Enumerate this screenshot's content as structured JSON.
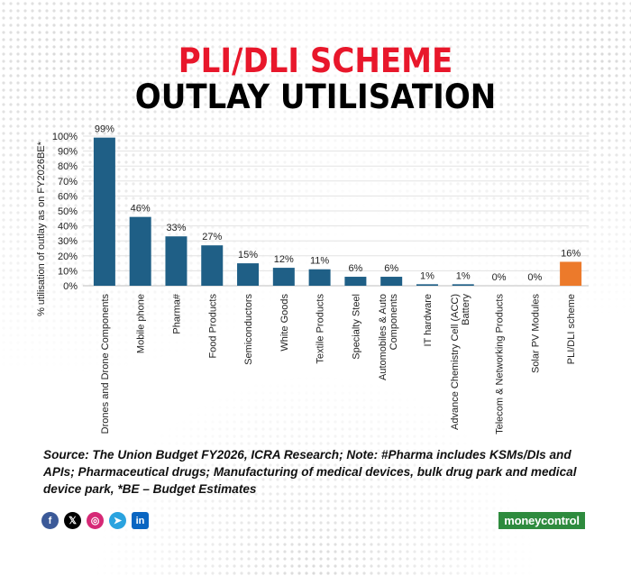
{
  "title": {
    "line1": "PLI/DLI SCHEME",
    "line2": "OUTLAY UTILISATION"
  },
  "chart_data": {
    "type": "bar",
    "ylabel": "% utilisation of outlay as on FY2026BE*",
    "xlabel": "",
    "ylim": [
      0,
      100
    ],
    "yticks": [
      "0%",
      "10%",
      "20%",
      "30%",
      "40%",
      "50%",
      "60%",
      "70%",
      "80%",
      "90%",
      "100%"
    ],
    "grid": true,
    "categories": [
      "Drones and Drone Components",
      "Mobile phone",
      "Pharma#",
      "Food Products",
      "Semiconductors",
      "White Goods",
      "Textile Products",
      "Specialty Steel",
      "Automobiles & Auto Components",
      "IT hardware",
      "Advance Chemistry Cell (ACC) Battery",
      "Telecom & Networking Products",
      "Solar PV Modules",
      "PLI/DLI scheme"
    ],
    "category_lines": [
      [
        "Drones and Drone Components"
      ],
      [
        "Mobile phone"
      ],
      [
        "Pharma#"
      ],
      [
        "Food Products"
      ],
      [
        "Semiconductors"
      ],
      [
        "White Goods"
      ],
      [
        "Textile Products"
      ],
      [
        "Specialty Steel"
      ],
      [
        "Automobiles & Auto",
        "Components"
      ],
      [
        "IT hardware"
      ],
      [
        "Advance Chemistry Cell (ACC)",
        "Battery"
      ],
      [
        "Telecom & Networking Products"
      ],
      [
        "Solar PV Modules"
      ],
      [
        "PLI/DLI scheme"
      ]
    ],
    "values": [
      99,
      46,
      33,
      27,
      15,
      12,
      11,
      6,
      6,
      1,
      1,
      0,
      0,
      16
    ],
    "value_labels": [
      "99%",
      "46%",
      "33%",
      "27%",
      "15%",
      "12%",
      "11%",
      "6%",
      "6%",
      "1%",
      "1%",
      "0%",
      "0%",
      "16%"
    ],
    "colors": {
      "bar": "#1f5f86",
      "highlight": "#ec7a2b",
      "highlight_index": 13
    }
  },
  "source_note": "Source: The Union Budget FY2026, ICRA Research; Note: #Pharma includes KSMs/DIs and APIs; Pharmaceutical drugs; Manufacturing of medical devices, bulk drug park and medical device park, *BE – Budget Estimates",
  "social_icons": [
    "facebook-icon",
    "x-icon",
    "instagram-icon",
    "telegram-icon",
    "linkedin-icon"
  ],
  "brand": {
    "logo_text": "moneycontrol",
    "color": "#2e8b3e"
  }
}
